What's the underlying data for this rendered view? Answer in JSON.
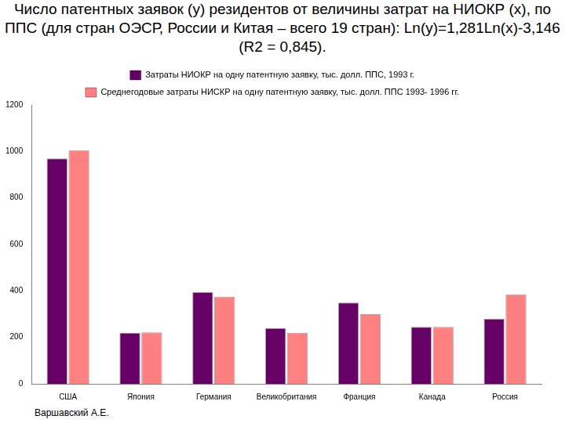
{
  "chart_data": {
    "type": "bar",
    "title": "Число патентных заявок (y) резидентов от величины затрат на НИОКР (x), по ППС (для стран ОЭСР, России и Китая – всего 19 стран): Ln(y)=1,281Ln(x)-3,146 (R2 = 0,845).",
    "categories": [
      "США",
      "Япония",
      "Германия",
      "Великобритания",
      "Франция",
      "Канада",
      "Россия"
    ],
    "series": [
      {
        "name": "Затраты НИОКР на одну патентную заявку, тыс. долл. ППС, 1993 г.",
        "color": "#660066",
        "values": [
          970,
          220,
          395,
          240,
          350,
          245,
          280
        ]
      },
      {
        "name": "Среднегодовые затраты НИСКР на одну патентную заявку, тыс. долл. ППС 1993- 1996 гг.",
        "color": "#ff8080",
        "values": [
          1005,
          222,
          375,
          220,
          300,
          245,
          385
        ]
      }
    ],
    "ylim": [
      0,
      1200
    ],
    "yticks": [
      0,
      200,
      400,
      600,
      800,
      1000,
      1200
    ],
    "grid": false,
    "legend": "top",
    "annotations": [
      "Варшавский А.Е."
    ]
  }
}
